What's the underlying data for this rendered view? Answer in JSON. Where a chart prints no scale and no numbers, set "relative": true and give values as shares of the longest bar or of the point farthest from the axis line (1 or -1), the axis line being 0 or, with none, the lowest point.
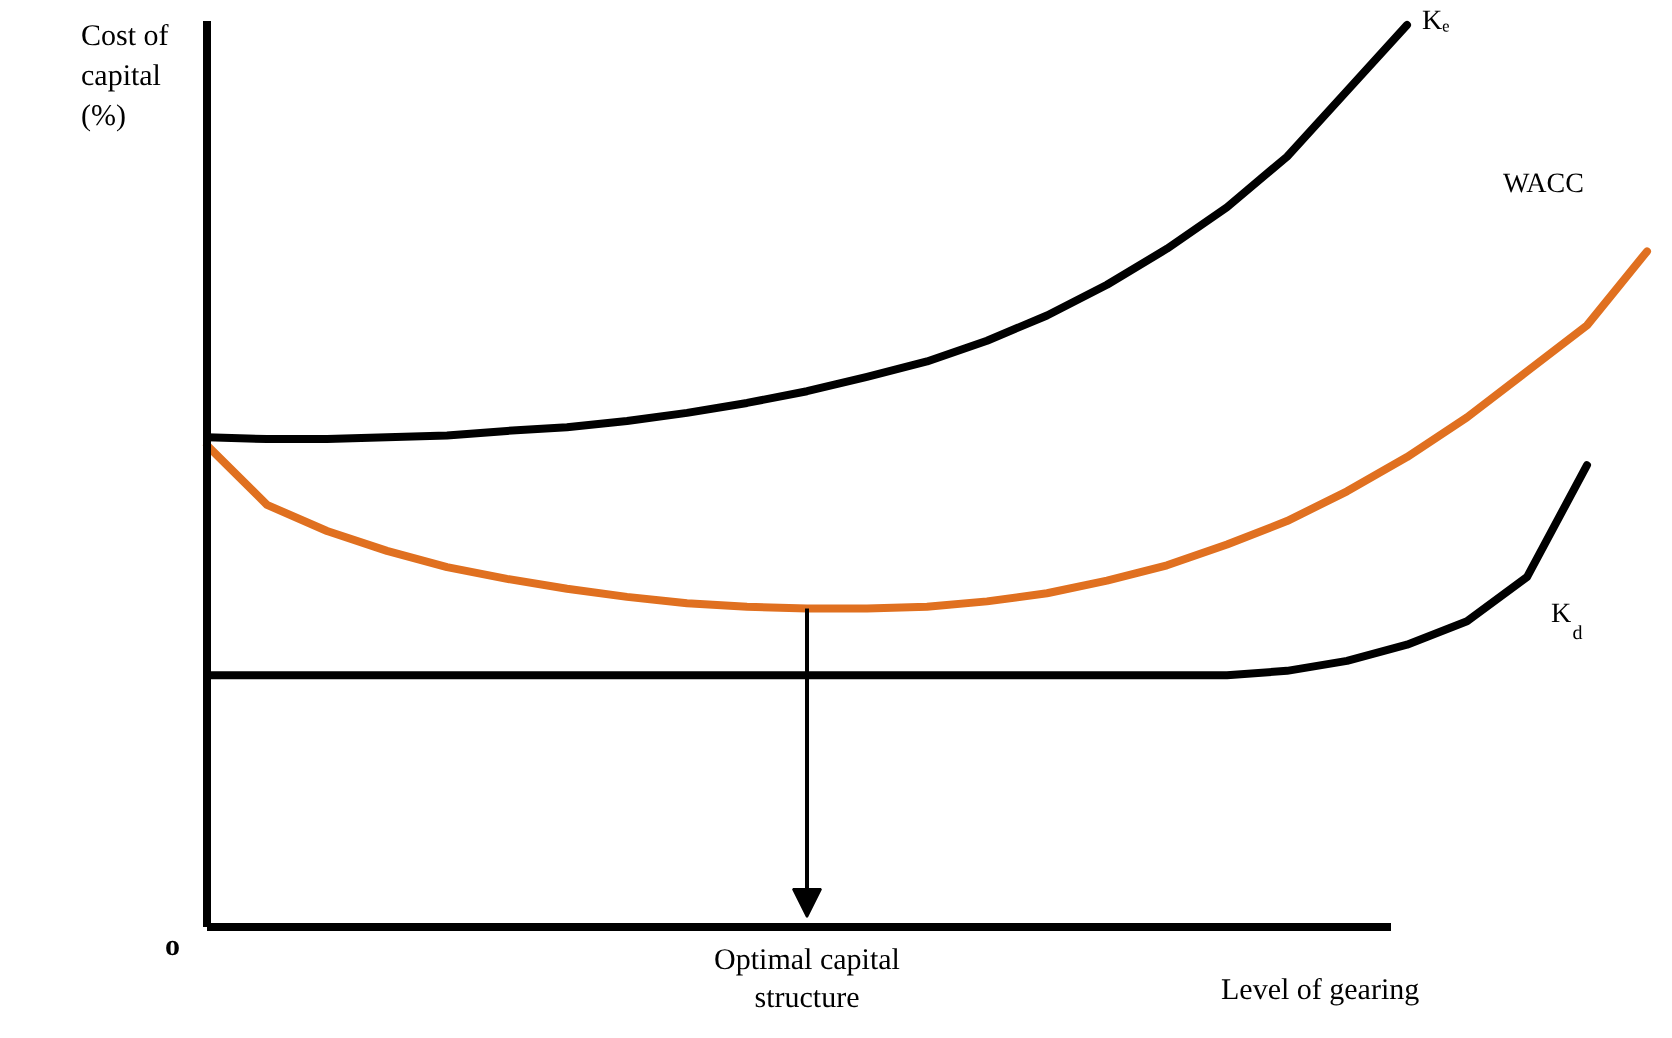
{
  "chart_data": {
    "type": "line",
    "relative": true,
    "line_style": "solid",
    "xlabel": "Level of gearing",
    "ylabel": "Cost of capital (%)",
    "annotations": [
      "o",
      "Optimal capital structure"
    ],
    "categories": [
      null,
      null,
      null,
      null,
      null,
      null,
      null,
      null,
      null,
      null,
      null,
      null,
      null,
      null,
      null,
      null,
      null,
      null,
      null,
      null,
      null,
      null,
      null,
      null,
      null
    ],
    "series": [
      {
        "name": "Kₑ",
        "color": "#000000",
        "values": [
          0.543,
          0.541,
          0.541,
          0.543,
          0.545,
          0.55,
          0.554,
          0.561,
          0.57,
          0.581,
          0.594,
          0.61,
          0.627,
          0.65,
          0.678,
          0.712,
          0.752,
          0.798,
          0.854,
          0.927,
          1.0,
          null,
          null,
          null,
          null
        ]
      },
      {
        "name": "WACC",
        "color": "#e07020",
        "values": [
          0.534,
          0.468,
          0.439,
          0.417,
          0.399,
          0.386,
          0.375,
          0.366,
          0.359,
          0.355,
          0.353,
          0.353,
          0.355,
          0.361,
          0.37,
          0.384,
          0.401,
          0.424,
          0.45,
          0.483,
          0.521,
          0.565,
          0.616,
          0.667,
          0.749
        ]
      },
      {
        "name": "K$_{d}$",
        "color": "#000000",
        "values": [
          0.279,
          0.279,
          0.279,
          0.279,
          0.279,
          0.279,
          0.279,
          0.279,
          0.279,
          0.279,
          0.279,
          0.279,
          0.279,
          0.279,
          0.279,
          0.279,
          0.279,
          0.279,
          0.284,
          0.295,
          0.313,
          0.339,
          0.388,
          0.512,
          null
        ]
      }
    ]
  }
}
